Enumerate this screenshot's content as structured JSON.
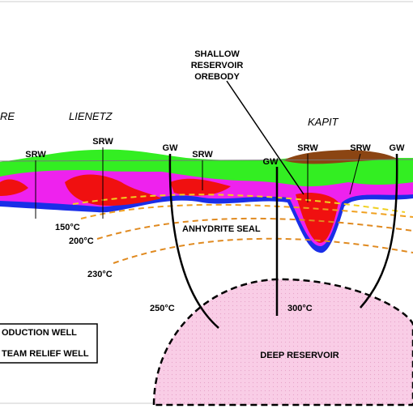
{
  "callout": [
    "SHALLOW",
    "RESERVOIR",
    "OREBODY"
  ],
  "areas": [
    "RE",
    "LIENETZ",
    "KAPIT"
  ],
  "wells": [
    "SRW",
    "SRW",
    "GW",
    "SRW",
    "GW",
    "SRW",
    "SRW",
    "GW"
  ],
  "isotherms": [
    "150°C",
    "200°C",
    "230°C",
    "250°C",
    "300°C"
  ],
  "zones": {
    "seal": "ANHYDRITE SEAL",
    "deep": "DEEP RESERVOIR"
  },
  "legend": [
    "ODUCTION WELL",
    "TEAM RELIEF WELL"
  ]
}
